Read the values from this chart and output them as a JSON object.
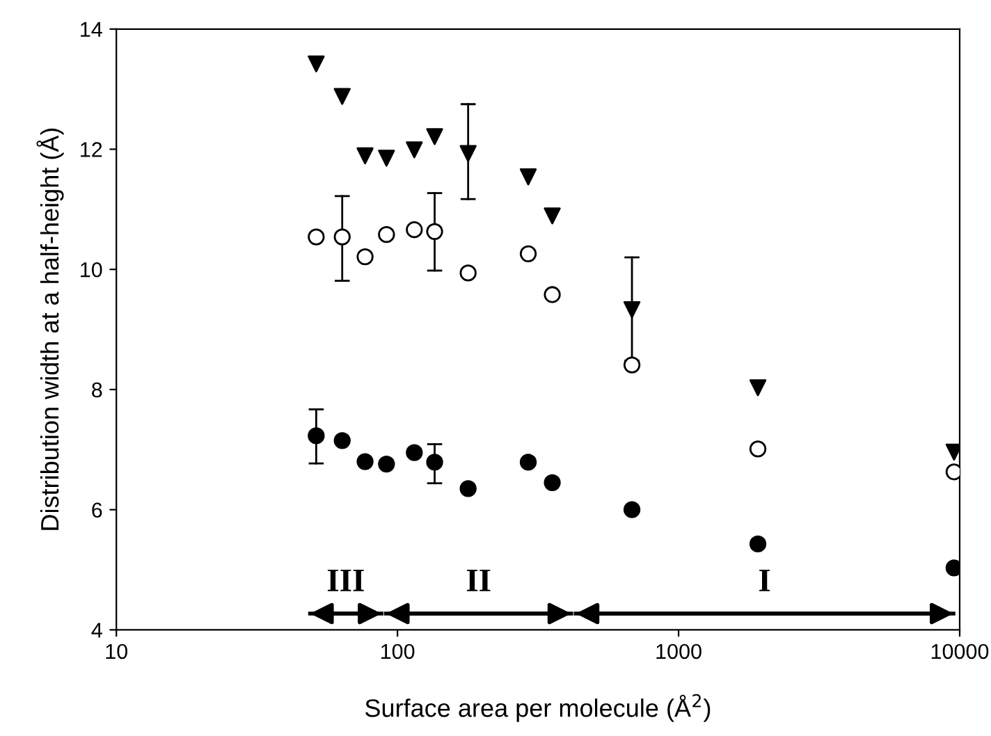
{
  "chart_data": {
    "type": "scatter",
    "xlabel": "Surface area per molecule (Å$^{2}$)",
    "ylabel": "Distribution width at a half-height (Å)",
    "x": [
      51.4,
      63.6,
      76.7,
      91.4,
      114.8,
      135.6,
      178.4,
      291.9,
      355.4,
      682.6,
      1915,
      9550
    ],
    "series": [
      {
        "color": "#000000",
        "marker": "triangle",
        "values": [
          13.42,
          12.88,
          11.89,
          11.85,
          11.99,
          12.21,
          11.93,
          11.54,
          10.89,
          9.33,
          8.03,
          6.96
        ],
        "errors": [
          null,
          null,
          null,
          null,
          null,
          null,
          [
            11.17,
            12.75
          ],
          null,
          null,
          [
            8.48,
            10.2
          ],
          null,
          null
        ]
      },
      {
        "color": "#ffffff",
        "marker": "circle",
        "values": [
          10.54,
          10.54,
          10.21,
          10.58,
          10.66,
          10.63,
          9.94,
          10.26,
          9.58,
          8.41,
          7.01,
          6.63
        ],
        "errors": [
          null,
          [
            9.81,
            11.22
          ],
          null,
          null,
          null,
          [
            9.98,
            11.27
          ],
          null,
          null,
          null,
          null,
          null,
          null
        ]
      },
      {
        "color": "#000000",
        "marker": "circle",
        "values": [
          7.23,
          7.15,
          6.8,
          6.76,
          6.95,
          6.79,
          6.35,
          6.79,
          6.45,
          6.0,
          5.43,
          5.03
        ],
        "errors": [
          [
            6.77,
            7.67
          ],
          null,
          null,
          null,
          null,
          [
            6.44,
            7.09
          ],
          null,
          null,
          null,
          null,
          null,
          null
        ]
      },
      {
        "type": "line",
        "name": "III",
        "color": "#000000",
        "x": [
          48.9,
          87.7
        ],
        "values": [
          4.27,
          4.27
        ]
      },
      {
        "type": "line",
        "name": "II",
        "color": "#000000",
        "x": [
          91.0,
          415
        ],
        "values": [
          4.27,
          4.27
        ]
      },
      {
        "type": "line",
        "name": "I",
        "color": "#000000",
        "x": [
          430.6,
          9500
        ],
        "values": [
          4.27,
          4.27
        ]
      }
    ],
    "log": "x",
    "xlim": [
      10,
      10000
    ],
    "xticks": [
      10,
      100,
      1000,
      10000
    ],
    "ylim": [
      4,
      14
    ],
    "yticks": [
      4,
      6,
      8,
      10,
      12,
      14
    ],
    "grid": false,
    "legend": false
  }
}
